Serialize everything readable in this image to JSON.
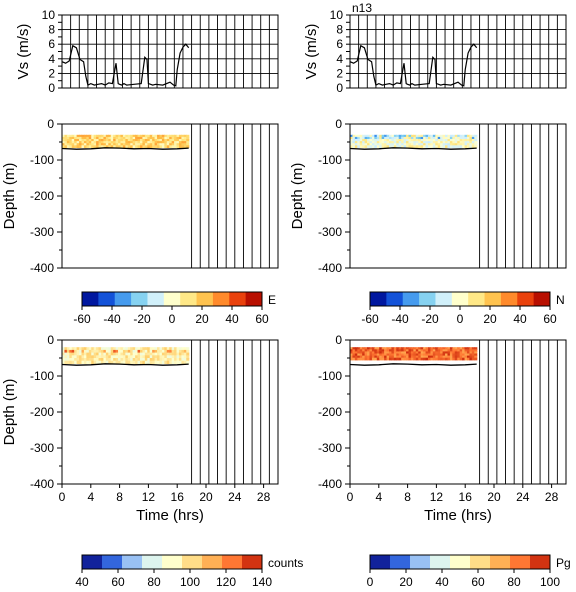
{
  "chart_data": [
    {
      "type": "line",
      "panel": "speed-left",
      "ylabel": "Vs (m/s)",
      "ylim": [
        0,
        10
      ],
      "yticks": [
        0,
        1,
        2,
        3,
        4,
        5,
        6,
        7,
        8,
        9,
        10
      ],
      "xlim": [
        0,
        30
      ],
      "grid": true,
      "series": [
        {
          "x": [
            0,
            0.5,
            1,
            1.5,
            2,
            2.5,
            3,
            3.3,
            3.6,
            4,
            4.5,
            5,
            5.5,
            6,
            6.5,
            7,
            7.5,
            7.8,
            8,
            8.3,
            8.6,
            9,
            10,
            11,
            11.5,
            11.8,
            12,
            12.3,
            12.6,
            13,
            14,
            15,
            15.5,
            15.8,
            16,
            16.4,
            16.8,
            17.2,
            17.6
          ],
          "values": [
            3.6,
            3.4,
            3.7,
            5.8,
            5.5,
            3.9,
            3.6,
            1.6,
            0.4,
            0.6,
            0.4,
            0.5,
            0.6,
            0.4,
            0.7,
            0.6,
            3.4,
            0.6,
            0.5,
            0.4,
            0.6,
            0.4,
            0.5,
            0.6,
            4.2,
            3.9,
            0.6,
            0.5,
            0.4,
            0.5,
            0.4,
            0.8,
            0.4,
            0.3,
            2.5,
            4.8,
            5.6,
            6.0,
            5.5
          ]
        }
      ]
    },
    {
      "type": "line",
      "panel": "speed-right",
      "title": "n13",
      "ylabel": "Vs (m/s)",
      "ylim": [
        0,
        10
      ],
      "yticks": [
        0,
        1,
        2,
        3,
        4,
        5,
        6,
        7,
        8,
        9,
        10
      ],
      "xlim": [
        0,
        30
      ],
      "grid": true,
      "series": [
        {
          "x": [
            0,
            0.5,
            1,
            1.5,
            2,
            2.5,
            3,
            3.3,
            3.6,
            4,
            4.5,
            5,
            5.5,
            6,
            6.5,
            7,
            7.5,
            7.8,
            8,
            8.3,
            8.6,
            9,
            10,
            11,
            11.5,
            11.8,
            12,
            12.3,
            12.6,
            13,
            14,
            15,
            15.5,
            15.8,
            16,
            16.4,
            16.8,
            17.2,
            17.6
          ],
          "values": [
            3.6,
            3.4,
            3.7,
            5.8,
            5.5,
            3.9,
            3.6,
            1.6,
            0.4,
            0.6,
            0.4,
            0.5,
            0.6,
            0.4,
            0.7,
            0.6,
            3.4,
            0.6,
            0.5,
            0.4,
            0.6,
            0.4,
            0.5,
            0.6,
            4.2,
            3.9,
            0.6,
            0.5,
            0.4,
            0.5,
            0.4,
            0.8,
            0.4,
            0.3,
            2.5,
            4.8,
            5.6,
            6.0,
            5.5
          ]
        }
      ]
    },
    {
      "type": "heatmap",
      "panel": "east",
      "ylabel": "Depth (m)",
      "ylim": [
        -400,
        0
      ],
      "yticks": [
        0,
        -100,
        -200,
        -300,
        -400
      ],
      "xlim": [
        0,
        30
      ],
      "colorbar": {
        "label": "E",
        "ticks": [
          -60,
          -40,
          -20,
          0,
          20,
          40,
          60
        ],
        "range": [
          -60,
          60
        ]
      },
      "data_extent": {
        "x": [
          0,
          17.6
        ],
        "depth": [
          -30,
          -65
        ]
      },
      "typical_value": 15
    },
    {
      "type": "heatmap",
      "panel": "north",
      "ylabel": "Depth (m)",
      "ylim": [
        -400,
        0
      ],
      "yticks": [
        0,
        -100,
        -200,
        -300,
        -400
      ],
      "xlim": [
        0,
        30
      ],
      "colorbar": {
        "label": "N",
        "ticks": [
          -60,
          -40,
          -20,
          0,
          20,
          40,
          60
        ],
        "range": [
          -60,
          60
        ]
      },
      "data_extent": {
        "x": [
          0,
          17.6
        ],
        "depth": [
          -30,
          -65
        ]
      },
      "typical_value": 0
    },
    {
      "type": "heatmap",
      "panel": "counts",
      "ylabel": "Depth (m)",
      "xlabel": "Time (hrs)",
      "ylim": [
        -400,
        0
      ],
      "yticks": [
        0,
        -100,
        -200,
        -300,
        -400
      ],
      "xlim": [
        0,
        30
      ],
      "xticks": [
        0,
        4,
        8,
        12,
        16,
        20,
        24,
        28
      ],
      "colorbar": {
        "label": "counts",
        "ticks": [
          40,
          60,
          80,
          100,
          120,
          140
        ],
        "range": [
          40,
          140
        ]
      },
      "data_extent": {
        "x": [
          0,
          17.6
        ],
        "depth": [
          -20,
          -65
        ]
      },
      "typical_value": 95
    },
    {
      "type": "heatmap",
      "panel": "pg",
      "xlabel": "Time (hrs)",
      "ylim": [
        -400,
        0
      ],
      "yticks": [
        0,
        -100,
        -200,
        -300,
        -400
      ],
      "xlim": [
        0,
        30
      ],
      "xticks": [
        0,
        4,
        8,
        12,
        16,
        20,
        24,
        28
      ],
      "colorbar": {
        "label": "Pg",
        "ticks": [
          0,
          20,
          40,
          60,
          80,
          100
        ],
        "range": [
          0,
          100
        ]
      },
      "data_extent": {
        "x": [
          0,
          17.6
        ],
        "depth": [
          -20,
          -55
        ]
      },
      "typical_value": 85
    }
  ],
  "seabed_depth": {
    "x": [
      0,
      2,
      4,
      6,
      8,
      10,
      12,
      14,
      16,
      17.6
    ],
    "values": [
      -68,
      -70,
      -69,
      -66,
      -67,
      -69,
      -68,
      -70,
      -69,
      -67
    ]
  },
  "colormaps": {
    "velocity": [
      "#00007a",
      "#0033cc",
      "#3388ee",
      "#77ccee",
      "#cceeff",
      "#ffffcc",
      "#ffe680",
      "#ffbb44",
      "#ff7722",
      "#dd2200",
      "#990000"
    ],
    "counts": [
      "#00007a",
      "#3366dd",
      "#cceeff",
      "#ffffcc",
      "#ffcc66",
      "#ff7733",
      "#bb1100"
    ],
    "pg": [
      "#00007a",
      "#3366dd",
      "#cceeff",
      "#ffffcc",
      "#ffcc66",
      "#ff7733",
      "#bb1100"
    ]
  }
}
